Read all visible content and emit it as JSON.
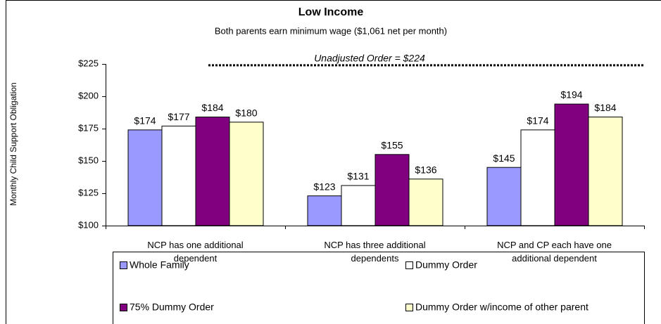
{
  "chart_data": {
    "type": "bar",
    "title": "Low Income",
    "subtitle": "Both parents earn minimum wage ($1,061 net per month)",
    "y_axis_label": "Monthly Child Support Obligation",
    "categories": [
      "NCP has one additional dependent",
      "NCP has three additional dependents",
      "NCP and CP each have one additional dependent"
    ],
    "series": [
      {
        "name": "Whole Family",
        "color": "#9999ff",
        "values": [
          174,
          123,
          145
        ],
        "value_labels": [
          "$174",
          "$123",
          "$145"
        ]
      },
      {
        "name": "Dummy Order",
        "color": "#ffffff",
        "values": [
          177,
          131,
          174
        ],
        "value_labels": [
          "$177",
          "$131",
          "$174"
        ]
      },
      {
        "name": "75% Dummy Order",
        "color": "#800080",
        "values": [
          184,
          155,
          194
        ],
        "value_labels": [
          "$184",
          "$155",
          "$194"
        ]
      },
      {
        "name": "Dummy Order w/income of other parent",
        "color": "#ffffcc",
        "values": [
          180,
          136,
          184
        ],
        "value_labels": [
          "$180",
          "$136",
          "$184"
        ]
      }
    ],
    "ylim": [
      100,
      225
    ],
    "yticks": [
      {
        "value": 100,
        "label": "$100"
      },
      {
        "value": 125,
        "label": "$125"
      },
      {
        "value": 150,
        "label": "$150"
      },
      {
        "value": 175,
        "label": "$175"
      },
      {
        "value": 200,
        "label": "$200"
      },
      {
        "value": 225,
        "label": "$225"
      }
    ],
    "reference_line": {
      "value": 224,
      "label": "Unadjusted Order = $224"
    }
  }
}
